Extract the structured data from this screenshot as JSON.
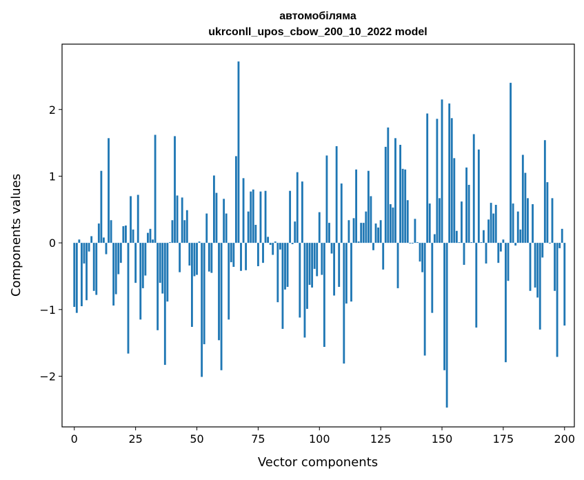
{
  "chart_data": {
    "type": "bar",
    "title_line1": "автомобіляма",
    "title_line2": "ukrconll_upos_cbow_200_10_2022 model",
    "xlabel": "Vector components",
    "ylabel": "Components values",
    "xlim": [
      -5,
      204
    ],
    "ylim": [
      -2.76,
      2.98
    ],
    "x_ticks": [
      0,
      25,
      50,
      75,
      100,
      125,
      150,
      175,
      200
    ],
    "y_ticks": [
      -2,
      -1,
      0,
      1,
      2
    ],
    "x_tick_labels": [
      "0",
      "25",
      "50",
      "75",
      "100",
      "125",
      "150",
      "175",
      "200"
    ],
    "y_tick_labels": [
      "−2",
      "−1",
      "0",
      "1",
      "2"
    ],
    "bar_color": "#1f77b4",
    "values": [
      -0.96,
      -1.05,
      0.05,
      -0.95,
      -0.31,
      -0.86,
      -0.13,
      0.1,
      -0.72,
      -0.78,
      0.29,
      1.08,
      0.08,
      -0.17,
      1.57,
      0.34,
      -0.94,
      -0.77,
      -0.47,
      -0.3,
      0.25,
      0.26,
      -1.66,
      0.7,
      0.2,
      -0.6,
      0.72,
      -1.15,
      -0.68,
      -0.49,
      0.15,
      0.21,
      0.05,
      1.62,
      -1.31,
      -0.6,
      -0.76,
      -1.83,
      -0.88,
      0.01,
      0.34,
      1.6,
      0.71,
      -0.44,
      0.68,
      0.34,
      0.49,
      -0.34,
      -1.26,
      -0.5,
      -0.48,
      0.02,
      -2.01,
      -1.52,
      0.44,
      -0.43,
      -0.45,
      1.01,
      0.75,
      -1.46,
      -1.91,
      0.66,
      0.44,
      -1.15,
      -0.29,
      -0.36,
      1.3,
      2.72,
      -0.42,
      0.97,
      -0.41,
      0.47,
      0.77,
      0.8,
      0.27,
      -0.35,
      0.77,
      -0.3,
      0.78,
      0.09,
      -0.03,
      -0.18,
      0.02,
      -0.89,
      -0.1,
      -1.29,
      -0.7,
      -0.66,
      0.78,
      -0.02,
      0.32,
      1.06,
      -1.12,
      0.92,
      -1.42,
      -0.99,
      -0.63,
      -0.67,
      -0.39,
      -0.5,
      0.46,
      -0.48,
      -1.56,
      1.31,
      0.3,
      -0.16,
      -0.79,
      1.45,
      -0.66,
      0.89,
      -1.81,
      -0.91,
      0.34,
      -0.88,
      0.37,
      1.1,
      0.02,
      0.3,
      0.3,
      0.47,
      1.08,
      0.7,
      -0.11,
      0.29,
      0.23,
      0.34,
      -0.4,
      1.44,
      1.73,
      0.58,
      0.53,
      1.57,
      -0.68,
      1.47,
      1.11,
      1.1,
      0.64,
      -0.01,
      -0.01,
      0.36,
      0.01,
      -0.28,
      -0.44,
      -1.69,
      1.94,
      0.59,
      -1.05,
      0.13,
      1.86,
      0.67,
      2.15,
      -1.91,
      -2.47,
      2.09,
      1.87,
      1.27,
      0.18,
      0.01,
      0.62,
      -0.33,
      1.13,
      0.87,
      0.01,
      1.63,
      -1.27,
      1.4,
      0.01,
      0.19,
      -0.31,
      0.35,
      0.6,
      0.44,
      0.57,
      -0.3,
      -0.13,
      0.05,
      -1.79,
      -0.57,
      2.4,
      0.59,
      -0.04,
      0.47,
      0.2,
      1.32,
      1.05,
      0.67,
      -0.72,
      0.58,
      -0.67,
      -0.82,
      -1.3,
      -0.22,
      1.54,
      0.91,
      -0.01,
      0.67,
      -0.72,
      -1.71,
      -0.08,
      0.21,
      -1.24
    ]
  }
}
